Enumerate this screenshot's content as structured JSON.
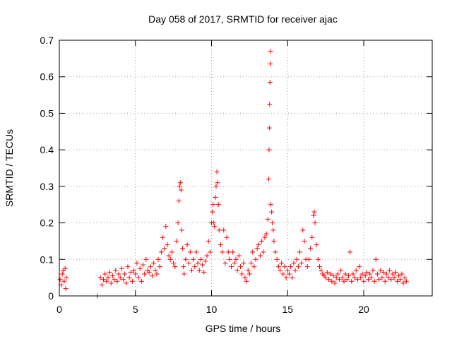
{
  "chart_data": {
    "type": "scatter",
    "title": "Day 058 of 2017, SRMTID for receiver ajac",
    "xlabel": "GPS time / hours",
    "ylabel": "SRMTID / TECUs",
    "xlim": [
      0,
      24.5
    ],
    "ylim": [
      0,
      0.7
    ],
    "x_ticks": [
      {
        "value": 0,
        "label": "0"
      },
      {
        "value": 5,
        "label": "5"
      },
      {
        "value": 10,
        "label": "10"
      },
      {
        "value": 15,
        "label": "15"
      },
      {
        "value": 20,
        "label": "20"
      }
    ],
    "y_ticks": [
      {
        "value": 0,
        "label": "0"
      },
      {
        "value": 0.1,
        "label": "0.1"
      },
      {
        "value": 0.2,
        "label": "0.2"
      },
      {
        "value": 0.3,
        "label": "0.3"
      },
      {
        "value": 0.4,
        "label": "0.4"
      },
      {
        "value": 0.5,
        "label": "0.5"
      },
      {
        "value": 0.6,
        "label": "0.6"
      },
      {
        "value": 0.7,
        "label": "0.7"
      }
    ],
    "grid": true,
    "marker": "+",
    "color": "#ff0000",
    "series": [
      {
        "name": "SRMTID",
        "points": [
          [
            0.05,
            0.045
          ],
          [
            0.12,
            0.03
          ],
          [
            0.2,
            0.06
          ],
          [
            0.25,
            0.07
          ],
          [
            0.32,
            0.04
          ],
          [
            0.38,
            0.075
          ],
          [
            0.42,
            0.02
          ],
          [
            0.46,
            0.05
          ],
          [
            2.5,
            0.0
          ],
          [
            2.7,
            0.05
          ],
          [
            2.8,
            0.03
          ],
          [
            2.9,
            0.045
          ],
          [
            3.0,
            0.06
          ],
          [
            3.1,
            0.04
          ],
          [
            3.2,
            0.05
          ],
          [
            3.3,
            0.065
          ],
          [
            3.4,
            0.035
          ],
          [
            3.5,
            0.055
          ],
          [
            3.6,
            0.045
          ],
          [
            3.7,
            0.07
          ],
          [
            3.8,
            0.04
          ],
          [
            3.9,
            0.06
          ],
          [
            4.0,
            0.05
          ],
          [
            4.1,
            0.075
          ],
          [
            4.2,
            0.045
          ],
          [
            4.3,
            0.06
          ],
          [
            4.4,
            0.035
          ],
          [
            4.5,
            0.08
          ],
          [
            4.6,
            0.05
          ],
          [
            4.7,
            0.065
          ],
          [
            4.8,
            0.04
          ],
          [
            4.9,
            0.07
          ],
          [
            5.0,
            0.06
          ],
          [
            5.1,
            0.09
          ],
          [
            5.2,
            0.05
          ],
          [
            5.3,
            0.075
          ],
          [
            5.4,
            0.04
          ],
          [
            5.5,
            0.085
          ],
          [
            5.6,
            0.06
          ],
          [
            5.7,
            0.1
          ],
          [
            5.8,
            0.07
          ],
          [
            5.9,
            0.065
          ],
          [
            6.0,
            0.08
          ],
          [
            6.1,
            0.055
          ],
          [
            6.2,
            0.09
          ],
          [
            6.3,
            0.07
          ],
          [
            6.4,
            0.06
          ],
          [
            6.5,
            0.1
          ],
          [
            6.6,
            0.08
          ],
          [
            6.7,
            0.12
          ],
          [
            6.8,
            0.16
          ],
          [
            6.9,
            0.13
          ],
          [
            7.0,
            0.19
          ],
          [
            7.1,
            0.14
          ],
          [
            7.2,
            0.11
          ],
          [
            7.3,
            0.1
          ],
          [
            7.4,
            0.12
          ],
          [
            7.5,
            0.09
          ],
          [
            7.6,
            0.08
          ],
          [
            7.7,
            0.15
          ],
          [
            7.8,
            0.2
          ],
          [
            7.85,
            0.26
          ],
          [
            7.9,
            0.3
          ],
          [
            7.95,
            0.31
          ],
          [
            8.0,
            0.29
          ],
          [
            8.05,
            0.18
          ],
          [
            8.1,
            0.13
          ],
          [
            8.15,
            0.08
          ],
          [
            8.2,
            0.06
          ],
          [
            8.3,
            0.1
          ],
          [
            8.4,
            0.14
          ],
          [
            8.5,
            0.09
          ],
          [
            8.6,
            0.12
          ],
          [
            8.7,
            0.07
          ],
          [
            8.8,
            0.1
          ],
          [
            8.9,
            0.08
          ],
          [
            9.0,
            0.12
          ],
          [
            9.1,
            0.09
          ],
          [
            9.2,
            0.07
          ],
          [
            9.3,
            0.1
          ],
          [
            9.4,
            0.085
          ],
          [
            9.5,
            0.065
          ],
          [
            9.6,
            0.095
          ],
          [
            9.7,
            0.11
          ],
          [
            9.8,
            0.15
          ],
          [
            9.9,
            0.12
          ],
          [
            10.0,
            0.2
          ],
          [
            10.05,
            0.23
          ],
          [
            10.1,
            0.25
          ],
          [
            10.15,
            0.2
          ],
          [
            10.2,
            0.19
          ],
          [
            10.25,
            0.27
          ],
          [
            10.3,
            0.3
          ],
          [
            10.35,
            0.34
          ],
          [
            10.4,
            0.31
          ],
          [
            10.45,
            0.25
          ],
          [
            10.5,
            0.18
          ],
          [
            10.6,
            0.14
          ],
          [
            10.7,
            0.12
          ],
          [
            10.8,
            0.18
          ],
          [
            10.9,
            0.09
          ],
          [
            11.0,
            0.16
          ],
          [
            11.1,
            0.12
          ],
          [
            11.2,
            0.1
          ],
          [
            11.3,
            0.08
          ],
          [
            11.4,
            0.12
          ],
          [
            11.5,
            0.09
          ],
          [
            11.6,
            0.1
          ],
          [
            11.7,
            0.07
          ],
          [
            11.8,
            0.11
          ],
          [
            11.9,
            0.08
          ],
          [
            12.0,
            0.06
          ],
          [
            12.1,
            0.09
          ],
          [
            12.2,
            0.05
          ],
          [
            12.3,
            0.04
          ],
          [
            12.4,
            0.07
          ],
          [
            12.5,
            0.06
          ],
          [
            12.6,
            0.09
          ],
          [
            12.7,
            0.12
          ],
          [
            12.8,
            0.08
          ],
          [
            12.9,
            0.1
          ],
          [
            13.0,
            0.13
          ],
          [
            13.1,
            0.14
          ],
          [
            13.2,
            0.11
          ],
          [
            13.3,
            0.15
          ],
          [
            13.4,
            0.12
          ],
          [
            13.5,
            0.16
          ],
          [
            13.6,
            0.17
          ],
          [
            13.7,
            0.21
          ],
          [
            13.75,
            0.32
          ],
          [
            13.78,
            0.4
          ],
          [
            13.8,
            0.46
          ],
          [
            13.82,
            0.525
          ],
          [
            13.84,
            0.585
          ],
          [
            13.86,
            0.635
          ],
          [
            13.88,
            0.67
          ],
          [
            13.9,
            0.25
          ],
          [
            13.95,
            0.23
          ],
          [
            14.0,
            0.2
          ],
          [
            14.05,
            0.18
          ],
          [
            14.1,
            0.15
          ],
          [
            14.2,
            0.12
          ],
          [
            14.3,
            0.1
          ],
          [
            14.4,
            0.08
          ],
          [
            14.5,
            0.07
          ],
          [
            14.6,
            0.09
          ],
          [
            14.7,
            0.06
          ],
          [
            14.8,
            0.08
          ],
          [
            14.9,
            0.05
          ],
          [
            15.0,
            0.07
          ],
          [
            15.1,
            0.06
          ],
          [
            15.2,
            0.08
          ],
          [
            15.3,
            0.05
          ],
          [
            15.4,
            0.09
          ],
          [
            15.5,
            0.07
          ],
          [
            15.6,
            0.1
          ],
          [
            15.7,
            0.08
          ],
          [
            15.8,
            0.12
          ],
          [
            15.9,
            0.09
          ],
          [
            16.0,
            0.18
          ],
          [
            16.1,
            0.15
          ],
          [
            16.2,
            0.1
          ],
          [
            16.3,
            0.08
          ],
          [
            16.4,
            0.1
          ],
          [
            16.5,
            0.13
          ],
          [
            16.6,
            0.16
          ],
          [
            16.7,
            0.22
          ],
          [
            16.75,
            0.23
          ],
          [
            16.8,
            0.2
          ],
          [
            16.9,
            0.14
          ],
          [
            17.0,
            0.1
          ],
          [
            17.1,
            0.08
          ],
          [
            17.2,
            0.07
          ],
          [
            17.3,
            0.06
          ],
          [
            17.4,
            0.055
          ],
          [
            17.5,
            0.05
          ],
          [
            17.6,
            0.065
          ],
          [
            17.7,
            0.045
          ],
          [
            17.8,
            0.06
          ],
          [
            17.9,
            0.04
          ],
          [
            18.0,
            0.055
          ],
          [
            18.1,
            0.035
          ],
          [
            18.2,
            0.05
          ],
          [
            18.3,
            0.06
          ],
          [
            18.4,
            0.045
          ],
          [
            18.5,
            0.07
          ],
          [
            18.6,
            0.05
          ],
          [
            18.7,
            0.04
          ],
          [
            18.8,
            0.06
          ],
          [
            18.9,
            0.045
          ],
          [
            19.0,
            0.055
          ],
          [
            19.1,
            0.12
          ],
          [
            19.2,
            0.04
          ],
          [
            19.3,
            0.06
          ],
          [
            19.4,
            0.05
          ],
          [
            19.5,
            0.07
          ],
          [
            19.6,
            0.045
          ],
          [
            19.7,
            0.08
          ],
          [
            19.8,
            0.05
          ],
          [
            19.9,
            0.06
          ],
          [
            20.0,
            0.04
          ],
          [
            20.1,
            0.055
          ],
          [
            20.2,
            0.065
          ],
          [
            20.3,
            0.045
          ],
          [
            20.4,
            0.06
          ],
          [
            20.5,
            0.05
          ],
          [
            20.6,
            0.07
          ],
          [
            20.7,
            0.04
          ],
          [
            20.8,
            0.1
          ],
          [
            20.9,
            0.06
          ],
          [
            21.0,
            0.045
          ],
          [
            21.1,
            0.07
          ],
          [
            21.2,
            0.05
          ],
          [
            21.3,
            0.065
          ],
          [
            21.4,
            0.04
          ],
          [
            21.5,
            0.06
          ],
          [
            21.6,
            0.05
          ],
          [
            21.7,
            0.07
          ],
          [
            21.8,
            0.045
          ],
          [
            21.9,
            0.06
          ],
          [
            22.0,
            0.05
          ],
          [
            22.1,
            0.065
          ],
          [
            22.2,
            0.04
          ],
          [
            22.3,
            0.055
          ],
          [
            22.4,
            0.045
          ],
          [
            22.5,
            0.06
          ],
          [
            22.6,
            0.035
          ],
          [
            22.7,
            0.05
          ],
          [
            22.8,
            0.04
          ]
        ]
      }
    ]
  }
}
